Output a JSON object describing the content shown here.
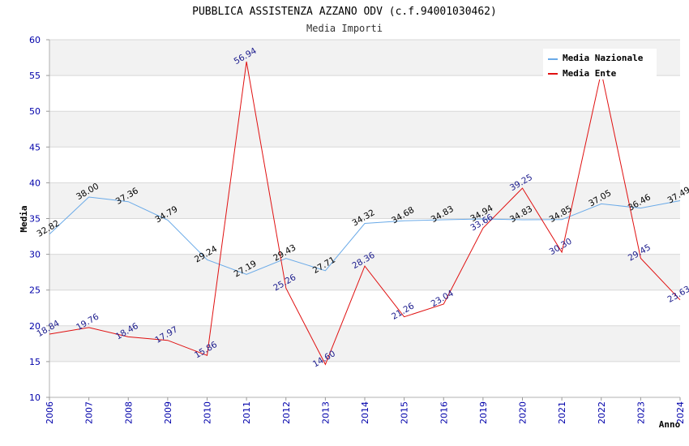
{
  "chart_data": {
    "type": "line",
    "title": "PUBBLICA ASSISTENZA AZZANO ODV (c.f.94001030462)",
    "subtitle": "Media Importi",
    "xlabel": "Anno",
    "ylabel": "Media",
    "ylim": [
      10,
      60
    ],
    "yticks": [
      "10",
      "15",
      "20",
      "25",
      "30",
      "35",
      "40",
      "45",
      "50",
      "55",
      "60"
    ],
    "categories": [
      "2006",
      "2007",
      "2008",
      "2009",
      "2010",
      "2011",
      "2012",
      "2013",
      "2014",
      "2015",
      "2016",
      "2019",
      "2020",
      "2021",
      "2022",
      "2023",
      "2024"
    ],
    "legend_position": "top-right",
    "series": [
      {
        "name": "Media Nazionale",
        "color": "#6aaae8",
        "label_color": "#000000",
        "values": [
          32.82,
          38.0,
          37.36,
          34.79,
          29.24,
          27.19,
          29.43,
          27.71,
          34.32,
          34.68,
          34.83,
          34.94,
          34.83,
          34.85,
          37.05,
          36.46,
          37.49
        ],
        "labels": [
          "32.82",
          "38.00",
          "37.36",
          "34.79",
          "29.24",
          "27.19",
          "29.43",
          "27.71",
          "34.32",
          "34.68",
          "34.83",
          "34.94",
          "34.83",
          "34.85",
          "37.05",
          "36.46",
          "37.49"
        ]
      },
      {
        "name": "Media Ente",
        "color": "#e01010",
        "label_color": "#1a1a8c",
        "values": [
          18.84,
          19.76,
          18.46,
          17.97,
          15.86,
          56.94,
          25.26,
          14.6,
          28.36,
          21.26,
          23.04,
          33.66,
          39.25,
          30.3,
          55.5,
          29.45,
          23.63
        ],
        "labels": [
          "18.84",
          "19.76",
          "18.46",
          "17.97",
          "15.86",
          "56.94",
          "25.26",
          "14.60",
          "28.36",
          "21.26",
          "23.04",
          "33.66",
          "39.25",
          "30.30",
          "",
          "29.45",
          "23.63"
        ]
      }
    ]
  }
}
